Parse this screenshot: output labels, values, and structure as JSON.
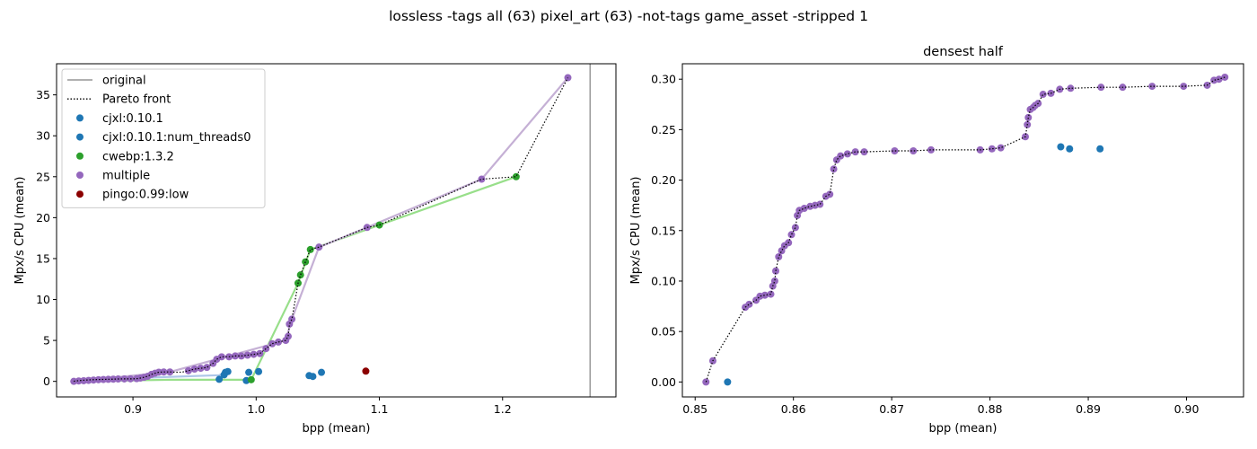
{
  "figure": {
    "suptitle": "lossless -tags all (63) pixel_art (63) -not-tags game_asset -stripped 1"
  },
  "chart_data": [
    {
      "type": "scatter",
      "title": "",
      "xlabel": "bpp (mean)",
      "ylabel": "Mpx/s CPU (mean)",
      "xlim": [
        0.838,
        1.292
      ],
      "ylim": [
        -1.9,
        38.8
      ],
      "xticks": [
        "0.9",
        "1.0",
        "1.1",
        "1.2"
      ],
      "xtick_values": [
        0.9,
        1.0,
        1.1,
        1.2
      ],
      "yticks": [
        "0",
        "5",
        "10",
        "15",
        "20",
        "25",
        "30",
        "35"
      ],
      "ytick_values": [
        0,
        5,
        10,
        15,
        20,
        25,
        30,
        35
      ],
      "grid": false,
      "legend_position": "upper-left",
      "original_line": {
        "name": "original",
        "x": 1.271,
        "color": "#808080"
      },
      "pareto_front": {
        "name": "Pareto front",
        "points": [
          [
            0.852,
            0.0
          ],
          [
            0.853,
            0.05
          ],
          [
            0.855,
            0.08
          ],
          [
            0.858,
            0.12
          ],
          [
            0.862,
            0.16
          ],
          [
            0.866,
            0.2
          ],
          [
            0.872,
            0.23
          ],
          [
            0.878,
            0.25
          ],
          [
            0.884,
            0.27
          ],
          [
            0.888,
            0.29
          ],
          [
            0.893,
            0.3
          ],
          [
            0.898,
            0.31
          ],
          [
            0.903,
            0.33
          ],
          [
            0.906,
            0.4
          ],
          [
            0.909,
            0.5
          ],
          [
            0.912,
            0.62
          ],
          [
            0.915,
            0.85
          ],
          [
            0.918,
            1.0
          ],
          [
            0.921,
            1.12
          ],
          [
            0.925,
            1.15
          ],
          [
            0.93,
            1.15
          ],
          [
            0.935,
            1.12
          ],
          [
            0.94,
            1.13
          ],
          [
            0.945,
            1.3
          ],
          [
            0.95,
            1.5
          ],
          [
            0.955,
            1.6
          ],
          [
            0.96,
            1.7
          ],
          [
            0.965,
            2.2
          ],
          [
            0.968,
            2.7
          ],
          [
            0.972,
            3.0
          ],
          [
            0.978,
            3.0
          ],
          [
            0.983,
            3.1
          ],
          [
            0.988,
            3.1
          ],
          [
            0.993,
            3.2
          ],
          [
            0.998,
            3.3
          ],
          [
            1.003,
            3.4
          ],
          [
            1.008,
            4.0
          ],
          [
            1.013,
            4.6
          ],
          [
            1.018,
            4.8
          ],
          [
            1.024,
            5.0
          ],
          [
            1.026,
            5.5
          ],
          [
            1.027,
            7.0
          ],
          [
            1.029,
            7.6
          ],
          [
            1.034,
            12.0
          ],
          [
            1.036,
            13.0
          ],
          [
            1.04,
            14.6
          ],
          [
            1.044,
            16.1
          ],
          [
            1.051,
            16.4
          ],
          [
            1.09,
            18.8
          ],
          [
            1.1,
            19.1
          ],
          [
            1.183,
            24.7
          ],
          [
            1.211,
            25.0
          ],
          [
            1.253,
            37.1
          ]
        ],
        "color": "#000000"
      },
      "series": [
        {
          "name": "cjxl:0.10.1",
          "color": "#1f77b4",
          "points": [
            [
              0.97,
              0.25
            ],
            [
              0.974,
              0.8
            ],
            [
              0.975,
              1.1
            ],
            [
              0.977,
              1.2
            ],
            [
              0.992,
              0.1
            ],
            [
              0.994,
              1.1
            ],
            [
              1.002,
              1.2
            ],
            [
              1.043,
              0.7
            ],
            [
              1.046,
              0.6
            ],
            [
              1.053,
              1.1
            ]
          ],
          "line": {
            "color": "#aec7e8",
            "points": [
              [
                0.852,
                0.0
              ],
              [
                0.91,
                0.45
              ],
              [
                0.97,
                0.75
              ],
              [
                0.975,
                1.1
              ]
            ]
          }
        },
        {
          "name": "cjxl:0.10.1:num_threads0",
          "color": "#1f77b4",
          "points": [],
          "line": null
        },
        {
          "name": "cwebp:1.3.2",
          "color": "#2ca02c",
          "points": [
            [
              0.996,
              0.2
            ],
            [
              1.034,
              12.0
            ],
            [
              1.036,
              13.0
            ],
            [
              1.04,
              14.6
            ],
            [
              1.044,
              16.1
            ],
            [
              1.1,
              19.1
            ],
            [
              1.211,
              25.0
            ]
          ],
          "line": {
            "color": "#98df8a",
            "points": [
              [
                0.852,
                0.0
              ],
              [
                0.93,
                0.2
              ],
              [
                0.996,
                0.2
              ],
              [
                1.034,
                12.0
              ],
              [
                1.044,
                16.1
              ],
              [
                1.1,
                19.1
              ],
              [
                1.211,
                25.0
              ]
            ]
          }
        },
        {
          "name": "multiple",
          "color": "#9467bd",
          "points": [
            [
              0.852,
              0.0
            ],
            [
              0.856,
              0.05
            ],
            [
              0.86,
              0.08
            ],
            [
              0.864,
              0.12
            ],
            [
              0.868,
              0.16
            ],
            [
              0.872,
              0.2
            ],
            [
              0.876,
              0.23
            ],
            [
              0.88,
              0.25
            ],
            [
              0.884,
              0.27
            ],
            [
              0.888,
              0.29
            ],
            [
              0.893,
              0.3
            ],
            [
              0.898,
              0.31
            ],
            [
              0.903,
              0.33
            ],
            [
              0.906,
              0.4
            ],
            [
              0.909,
              0.5
            ],
            [
              0.912,
              0.62
            ],
            [
              0.915,
              0.85
            ],
            [
              0.918,
              1.0
            ],
            [
              0.921,
              1.12
            ],
            [
              0.925,
              1.15
            ],
            [
              0.93,
              1.15
            ],
            [
              0.945,
              1.3
            ],
            [
              0.95,
              1.5
            ],
            [
              0.955,
              1.6
            ],
            [
              0.96,
              1.7
            ],
            [
              0.965,
              2.2
            ],
            [
              0.968,
              2.7
            ],
            [
              0.972,
              3.0
            ],
            [
              0.978,
              3.0
            ],
            [
              0.983,
              3.1
            ],
            [
              0.988,
              3.1
            ],
            [
              0.993,
              3.2
            ],
            [
              0.998,
              3.3
            ],
            [
              1.003,
              3.4
            ],
            [
              1.008,
              4.0
            ],
            [
              1.013,
              4.6
            ],
            [
              1.018,
              4.8
            ],
            [
              1.024,
              5.0
            ],
            [
              1.026,
              5.5
            ],
            [
              1.027,
              7.0
            ],
            [
              1.029,
              7.6
            ],
            [
              1.051,
              16.4
            ],
            [
              1.09,
              18.8
            ],
            [
              1.183,
              24.7
            ],
            [
              1.253,
              37.1
            ]
          ],
          "line": {
            "color": "#c5b0d5",
            "points": [
              [
                0.852,
                0.0
              ],
              [
                0.93,
                1.15
              ],
              [
                0.968,
                2.7
              ],
              [
                1.024,
                5.0
              ],
              [
                1.029,
                7.6
              ],
              [
                1.051,
                16.4
              ],
              [
                1.09,
                18.8
              ],
              [
                1.183,
                24.7
              ],
              [
                1.253,
                37.1
              ]
            ]
          }
        },
        {
          "name": "pingo:0.99:low",
          "color": "#8b0000",
          "points": [
            [
              1.089,
              1.25
            ]
          ],
          "line": null
        }
      ]
    },
    {
      "type": "scatter",
      "title": "densest half",
      "xlabel": "bpp (mean)",
      "ylabel": "Mpx/s CPU (mean)",
      "xlim": [
        0.8487,
        0.9058
      ],
      "ylim": [
        -0.0148,
        0.3153
      ],
      "xticks": [
        "0.85",
        "0.86",
        "0.87",
        "0.88",
        "0.89",
        "0.90"
      ],
      "xtick_values": [
        0.85,
        0.86,
        0.87,
        0.88,
        0.89,
        0.9
      ],
      "yticks": [
        "0.00",
        "0.05",
        "0.10",
        "0.15",
        "0.20",
        "0.25",
        "0.30"
      ],
      "ytick_values": [
        0.0,
        0.05,
        0.1,
        0.15,
        0.2,
        0.25,
        0.3
      ],
      "grid": false,
      "pareto_front": {
        "points": [
          [
            0.8511,
            0.0
          ],
          [
            0.8518,
            0.021
          ],
          [
            0.8551,
            0.074
          ],
          [
            0.8555,
            0.077
          ],
          [
            0.8562,
            0.081
          ],
          [
            0.8566,
            0.085
          ],
          [
            0.8571,
            0.086
          ],
          [
            0.8577,
            0.087
          ],
          [
            0.8579,
            0.095
          ],
          [
            0.8581,
            0.1
          ],
          [
            0.8582,
            0.11
          ],
          [
            0.8585,
            0.124
          ],
          [
            0.8588,
            0.13
          ],
          [
            0.8591,
            0.135
          ],
          [
            0.8595,
            0.138
          ],
          [
            0.8598,
            0.146
          ],
          [
            0.8602,
            0.153
          ],
          [
            0.8604,
            0.165
          ],
          [
            0.8606,
            0.17
          ],
          [
            0.8611,
            0.172
          ],
          [
            0.8617,
            0.174
          ],
          [
            0.8622,
            0.175
          ],
          [
            0.8627,
            0.176
          ],
          [
            0.8633,
            0.184
          ],
          [
            0.8637,
            0.186
          ],
          [
            0.8641,
            0.211
          ],
          [
            0.8644,
            0.22
          ],
          [
            0.8648,
            0.224
          ],
          [
            0.8655,
            0.226
          ],
          [
            0.8663,
            0.228
          ],
          [
            0.8672,
            0.228
          ],
          [
            0.8703,
            0.229
          ],
          [
            0.8722,
            0.229
          ],
          [
            0.874,
            0.23
          ],
          [
            0.879,
            0.23
          ],
          [
            0.8802,
            0.231
          ],
          [
            0.8811,
            0.232
          ],
          [
            0.8836,
            0.243
          ],
          [
            0.8838,
            0.255
          ],
          [
            0.8839,
            0.262
          ],
          [
            0.8841,
            0.27
          ],
          [
            0.8844,
            0.272
          ],
          [
            0.8846,
            0.274
          ],
          [
            0.8849,
            0.276
          ],
          [
            0.8854,
            0.285
          ],
          [
            0.8862,
            0.286
          ],
          [
            0.8871,
            0.29
          ],
          [
            0.8882,
            0.291
          ],
          [
            0.8913,
            0.292
          ],
          [
            0.8935,
            0.292
          ],
          [
            0.8965,
            0.293
          ],
          [
            0.8997,
            0.293
          ],
          [
            0.9021,
            0.294
          ],
          [
            0.9028,
            0.299
          ],
          [
            0.9033,
            0.3
          ],
          [
            0.9039,
            0.302
          ]
        ],
        "color": "#000000"
      },
      "series": [
        {
          "color": "#1f77b4",
          "points": [
            [
              0.8533,
              0.0
            ],
            [
              0.8872,
              0.233
            ],
            [
              0.8881,
              0.231
            ],
            [
              0.8912,
              0.231
            ]
          ]
        },
        {
          "color": "#9467bd",
          "points": [
            [
              0.8511,
              0.0
            ],
            [
              0.8518,
              0.021
            ],
            [
              0.8551,
              0.074
            ],
            [
              0.8555,
              0.077
            ],
            [
              0.8562,
              0.081
            ],
            [
              0.8566,
              0.085
            ],
            [
              0.8571,
              0.086
            ],
            [
              0.8577,
              0.087
            ],
            [
              0.8579,
              0.095
            ],
            [
              0.8581,
              0.1
            ],
            [
              0.8582,
              0.11
            ],
            [
              0.8585,
              0.124
            ],
            [
              0.8588,
              0.13
            ],
            [
              0.8591,
              0.135
            ],
            [
              0.8595,
              0.138
            ],
            [
              0.8598,
              0.146
            ],
            [
              0.8602,
              0.153
            ],
            [
              0.8604,
              0.165
            ],
            [
              0.8606,
              0.17
            ],
            [
              0.8611,
              0.172
            ],
            [
              0.8617,
              0.174
            ],
            [
              0.8622,
              0.175
            ],
            [
              0.8627,
              0.176
            ],
            [
              0.8633,
              0.184
            ],
            [
              0.8637,
              0.186
            ],
            [
              0.8641,
              0.211
            ],
            [
              0.8644,
              0.22
            ],
            [
              0.8648,
              0.224
            ],
            [
              0.8655,
              0.226
            ],
            [
              0.8663,
              0.228
            ],
            [
              0.8672,
              0.228
            ],
            [
              0.8703,
              0.229
            ],
            [
              0.8722,
              0.229
            ],
            [
              0.874,
              0.23
            ],
            [
              0.879,
              0.23
            ],
            [
              0.8802,
              0.231
            ],
            [
              0.8811,
              0.232
            ],
            [
              0.8836,
              0.243
            ],
            [
              0.8838,
              0.255
            ],
            [
              0.8839,
              0.262
            ],
            [
              0.8841,
              0.27
            ],
            [
              0.8844,
              0.272
            ],
            [
              0.8846,
              0.274
            ],
            [
              0.8849,
              0.276
            ],
            [
              0.8854,
              0.285
            ],
            [
              0.8862,
              0.286
            ],
            [
              0.8871,
              0.29
            ],
            [
              0.8882,
              0.291
            ],
            [
              0.8913,
              0.292
            ],
            [
              0.8935,
              0.292
            ],
            [
              0.8965,
              0.293
            ],
            [
              0.8997,
              0.293
            ],
            [
              0.9021,
              0.294
            ],
            [
              0.9028,
              0.299
            ],
            [
              0.9033,
              0.3
            ],
            [
              0.9039,
              0.302
            ]
          ]
        }
      ]
    }
  ]
}
